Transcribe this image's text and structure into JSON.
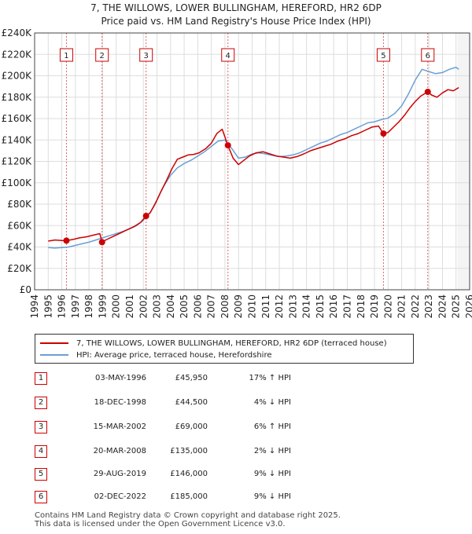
{
  "chart_data": {
    "type": "line",
    "title": "7, THE WILLOWS, LOWER BULLINGHAM, HEREFORD, HR2 6DP",
    "subtitle": "Price paid vs. HM Land Registry's House Price Index (HPI)",
    "xlabel": "",
    "ylabel": "",
    "xlim": [
      1994.5,
      2026
    ],
    "ylim": [
      0,
      240000
    ],
    "x_ticks": [
      1994,
      1995,
      1996,
      1997,
      1998,
      1999,
      2000,
      2001,
      2002,
      2003,
      2004,
      2005,
      2006,
      2007,
      2008,
      2009,
      2010,
      2011,
      2012,
      2013,
      2014,
      2015,
      2016,
      2017,
      2018,
      2019,
      2020,
      2021,
      2022,
      2023,
      2024,
      2025,
      2026
    ],
    "y_ticks": [
      0,
      20000,
      40000,
      60000,
      80000,
      100000,
      120000,
      140000,
      160000,
      180000,
      200000,
      220000,
      240000
    ],
    "y_tick_labels": [
      "£0",
      "£20K",
      "£40K",
      "£60K",
      "£80K",
      "£100K",
      "£120K",
      "£140K",
      "£160K",
      "£180K",
      "£200K",
      "£220K",
      "£240K"
    ],
    "grid": true,
    "series": [
      {
        "name": "7, THE WILLOWS, LOWER BULLINGHAM, HEREFORD, HR2 6DP (terraced house)",
        "color": "#cc0000",
        "x": [
          1995.0,
          1995.5,
          1996.0,
          1996.34,
          1996.8,
          1997.3,
          1997.8,
          1998.3,
          1998.8,
          1998.96,
          1999.3,
          1999.8,
          2000.3,
          2000.8,
          2001.3,
          2001.8,
          2002.2,
          2002.5,
          2002.9,
          2003.3,
          2003.7,
          2004.1,
          2004.5,
          2004.9,
          2005.3,
          2005.7,
          2006.1,
          2006.6,
          2007.0,
          2007.4,
          2007.8,
          2008.22,
          2008.6,
          2009.0,
          2009.4,
          2009.8,
          2010.3,
          2010.8,
          2011.3,
          2011.8,
          2012.3,
          2012.8,
          2013.3,
          2013.8,
          2014.3,
          2014.8,
          2015.3,
          2015.8,
          2016.3,
          2016.8,
          2017.3,
          2017.8,
          2018.3,
          2018.8,
          2019.3,
          2019.66,
          2020.0,
          2020.4,
          2020.8,
          2021.2,
          2021.6,
          2022.0,
          2022.4,
          2022.92,
          2023.2,
          2023.6,
          2024.0,
          2024.4,
          2024.8,
          2025.2
        ],
        "y": [
          45500,
          46500,
          46000,
          45950,
          47000,
          48500,
          49500,
          51000,
          52500,
          44500,
          47000,
          50000,
          53000,
          56000,
          59000,
          63000,
          69000,
          72000,
          81000,
          92000,
          102000,
          113000,
          122000,
          124000,
          126000,
          126500,
          128000,
          132000,
          137000,
          146000,
          150000,
          135000,
          123000,
          117000,
          121000,
          125000,
          128000,
          129000,
          127000,
          125000,
          124000,
          123000,
          124500,
          127000,
          130000,
          132000,
          134000,
          136000,
          139000,
          141000,
          144000,
          146000,
          149000,
          152000,
          153000,
          146000,
          147000,
          152000,
          157000,
          163000,
          170000,
          176000,
          181000,
          185000,
          182000,
          180000,
          184000,
          187000,
          186000,
          189000
        ]
      },
      {
        "name": "HPI: Average price, terraced house, Herefordshire",
        "color": "#6a9fd4",
        "x": [
          1995.0,
          1995.5,
          1996.0,
          1996.5,
          1997.0,
          1997.5,
          1998.0,
          1998.5,
          1999.0,
          1999.5,
          2000.0,
          2000.5,
          2001.0,
          2001.5,
          2002.0,
          2002.5,
          2003.0,
          2003.5,
          2004.0,
          2004.5,
          2005.0,
          2005.5,
          2006.0,
          2006.5,
          2007.0,
          2007.5,
          2008.0,
          2008.5,
          2009.0,
          2009.5,
          2010.0,
          2010.5,
          2011.0,
          2011.5,
          2012.0,
          2012.5,
          2013.0,
          2013.5,
          2014.0,
          2014.5,
          2015.0,
          2015.5,
          2016.0,
          2016.5,
          2017.0,
          2017.5,
          2018.0,
          2018.5,
          2019.0,
          2019.5,
          2020.0,
          2020.5,
          2021.0,
          2021.5,
          2022.0,
          2022.5,
          2023.0,
          2023.5,
          2024.0,
          2024.5,
          2025.0,
          2025.2
        ],
        "y": [
          39500,
          39000,
          39500,
          40000,
          41500,
          43000,
          44500,
          46500,
          48500,
          50500,
          52500,
          54500,
          57000,
          60000,
          65000,
          72000,
          84000,
          97000,
          107000,
          114000,
          118000,
          121000,
          125000,
          129000,
          134000,
          139000,
          140000,
          132000,
          123000,
          124000,
          127000,
          128000,
          127000,
          125500,
          124500,
          125000,
          126000,
          128000,
          131000,
          134000,
          137000,
          139000,
          142000,
          145000,
          147000,
          150000,
          153000,
          156000,
          157000,
          159000,
          160500,
          165000,
          172000,
          183000,
          196000,
          206000,
          204000,
          202000,
          203000,
          206000,
          208000,
          206000
        ]
      }
    ],
    "sales": [
      {
        "label": "1",
        "x": 1996.34,
        "y": 45950
      },
      {
        "label": "2",
        "x": 1998.96,
        "y": 44500
      },
      {
        "label": "3",
        "x": 2002.2,
        "y": 69000
      },
      {
        "label": "4",
        "x": 2008.22,
        "y": 135000
      },
      {
        "label": "5",
        "x": 2019.66,
        "y": 146000
      },
      {
        "label": "6",
        "x": 2022.92,
        "y": 185000
      }
    ]
  },
  "legend": {
    "property": "7, THE WILLOWS, LOWER BULLINGHAM, HEREFORD, HR2 6DP (terraced house)",
    "hpi": "HPI: Average price, terraced house, Herefordshire"
  },
  "transactions": [
    {
      "num": "1",
      "date": "03-MAY-1996",
      "price": "£45,950",
      "hpi": "17% ↑ HPI"
    },
    {
      "num": "2",
      "date": "18-DEC-1998",
      "price": "£44,500",
      "hpi": "4% ↓ HPI"
    },
    {
      "num": "3",
      "date": "15-MAR-2002",
      "price": "£69,000",
      "hpi": "6% ↑ HPI"
    },
    {
      "num": "4",
      "date": "20-MAR-2008",
      "price": "£135,000",
      "hpi": "2% ↓ HPI"
    },
    {
      "num": "5",
      "date": "29-AUG-2019",
      "price": "£146,000",
      "hpi": "9% ↓ HPI"
    },
    {
      "num": "6",
      "date": "02-DEC-2022",
      "price": "£185,000",
      "hpi": "9% ↓ HPI"
    }
  ],
  "footer": {
    "line1": "Contains HM Land Registry data © Crown copyright and database right 2025.",
    "line2": "This data is licensed under the Open Government Licence v3.0."
  }
}
